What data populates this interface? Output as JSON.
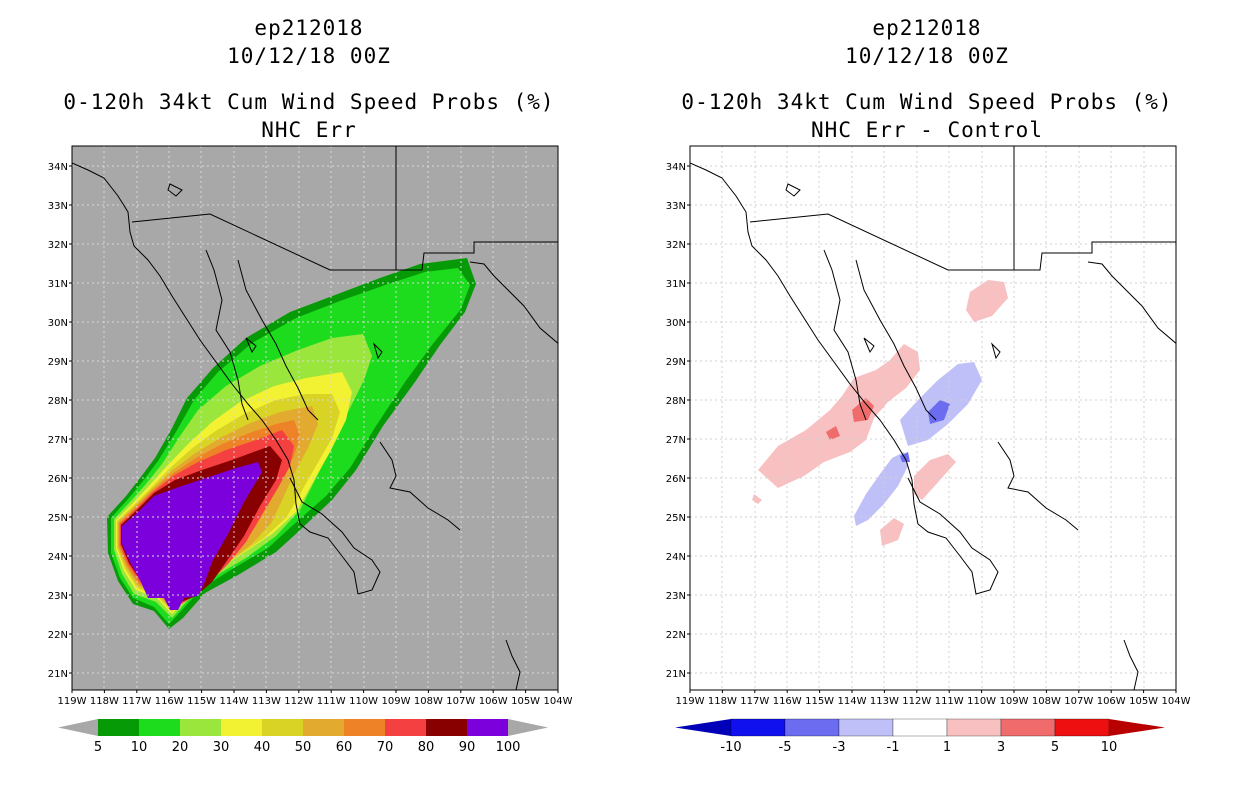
{
  "panels": [
    {
      "title_id": "ep212018",
      "title_date": "10/12/18 00Z",
      "title_product": "0-120h 34kt Cum Wind Speed Probs (%)",
      "title_subtitle": "NHC Err",
      "background_color": "#a8a8a8",
      "colorbar": {
        "labels": [
          "5",
          "10",
          "20",
          "30",
          "40",
          "50",
          "60",
          "70",
          "80",
          "90",
          "100"
        ],
        "colors": [
          "#079a07",
          "#1ddc1d",
          "#9ae63c",
          "#f2f232",
          "#d9d326",
          "#e3aa30",
          "#ee8227",
          "#f44040",
          "#880000",
          "#7b00dc"
        ]
      }
    },
    {
      "title_id": "ep212018",
      "title_date": "10/12/18 00Z",
      "title_product": "0-120h 34kt Cum Wind Speed Probs (%)",
      "title_subtitle": "NHC Err - Control",
      "background_color": "#ffffff",
      "colorbar": {
        "labels": [
          "-10",
          "-5",
          "-3",
          "-1",
          "1",
          "3",
          "5",
          "10"
        ],
        "colors": [
          "#0000b8",
          "#1010ee",
          "#6c6cf0",
          "#c0c0f8",
          "#ffffff",
          "#f8c0c0",
          "#f06c6c",
          "#ee1010",
          "#b80000"
        ]
      }
    }
  ],
  "axes": {
    "lat_labels": [
      "34N",
      "33N",
      "32N",
      "31N",
      "30N",
      "29N",
      "28N",
      "27N",
      "26N",
      "25N",
      "24N",
      "23N",
      "22N",
      "21N"
    ],
    "lon_labels": [
      "119W",
      "118W",
      "117W",
      "116W",
      "115W",
      "114W",
      "113W",
      "112W",
      "111W",
      "110W",
      "109W",
      "108W",
      "107W",
      "106W",
      "105W",
      "104W"
    ],
    "lon_range": [
      -119,
      -104
    ],
    "lat_range": [
      20.6,
      34.5
    ]
  }
}
